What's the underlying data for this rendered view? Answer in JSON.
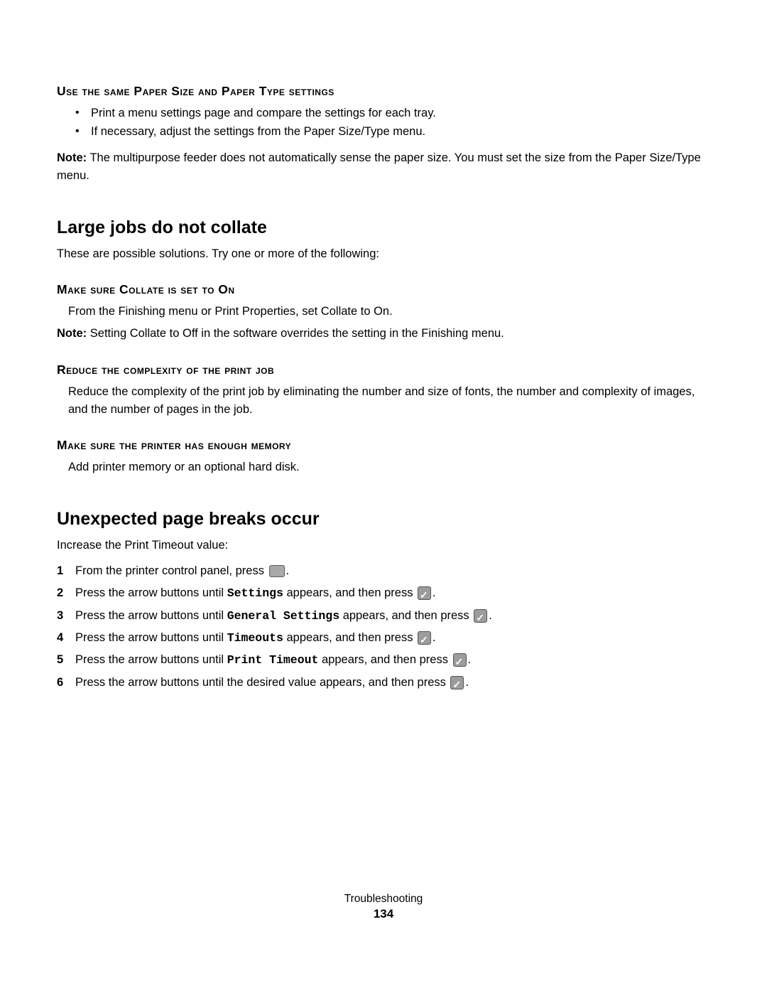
{
  "section1": {
    "heading": "Use the same Paper Size and Paper Type settings",
    "bullets": [
      "Print a menu settings page and compare the settings for each tray.",
      "If necessary, adjust the settings from the Paper Size/Type menu."
    ],
    "note_label": "Note:",
    "note_text": " The multipurpose feeder does not automatically sense the paper size. You must set the size from the Paper Size/Type menu."
  },
  "section2": {
    "title": "Large jobs do not collate",
    "intro": "These are possible solutions. Try one or more of the following:",
    "sub1": {
      "heading": "Make sure Collate is set to On",
      "body": "From the Finishing menu or Print Properties, set Collate to On.",
      "note_label": "Note:",
      "note_text": " Setting Collate to Off in the software overrides the setting in the Finishing menu."
    },
    "sub2": {
      "heading": "Reduce the complexity of the print job",
      "body": "Reduce the complexity of the print job by eliminating the number and size of fonts, the number and complexity of images, and the number of pages in the job."
    },
    "sub3": {
      "heading": "Make sure the printer has enough memory",
      "body": "Add printer memory or an optional hard disk."
    }
  },
  "section3": {
    "title": "Unexpected page breaks occur",
    "intro": "Increase the Print Timeout value:",
    "steps": {
      "s1_a": "From the printer control panel, press ",
      "s1_b": ".",
      "s2_a": "Press the arrow buttons until ",
      "s2_m": "Settings",
      "s2_b": " appears, and then press ",
      "s2_c": ".",
      "s3_a": "Press the arrow buttons until ",
      "s3_m": "General Settings",
      "s3_b": " appears, and then press ",
      "s3_c": ".",
      "s4_a": "Press the arrow buttons until ",
      "s4_m": "Timeouts",
      "s4_b": " appears, and then press ",
      "s4_c": ".",
      "s5_a": "Press the arrow buttons until ",
      "s5_m": "Print Timeout",
      "s5_b": " appears, and then press ",
      "s5_c": ".",
      "s6_a": "Press the arrow buttons until the desired value appears, and then press ",
      "s6_b": "."
    }
  },
  "footer": {
    "label": "Troubleshooting",
    "page": "134"
  }
}
